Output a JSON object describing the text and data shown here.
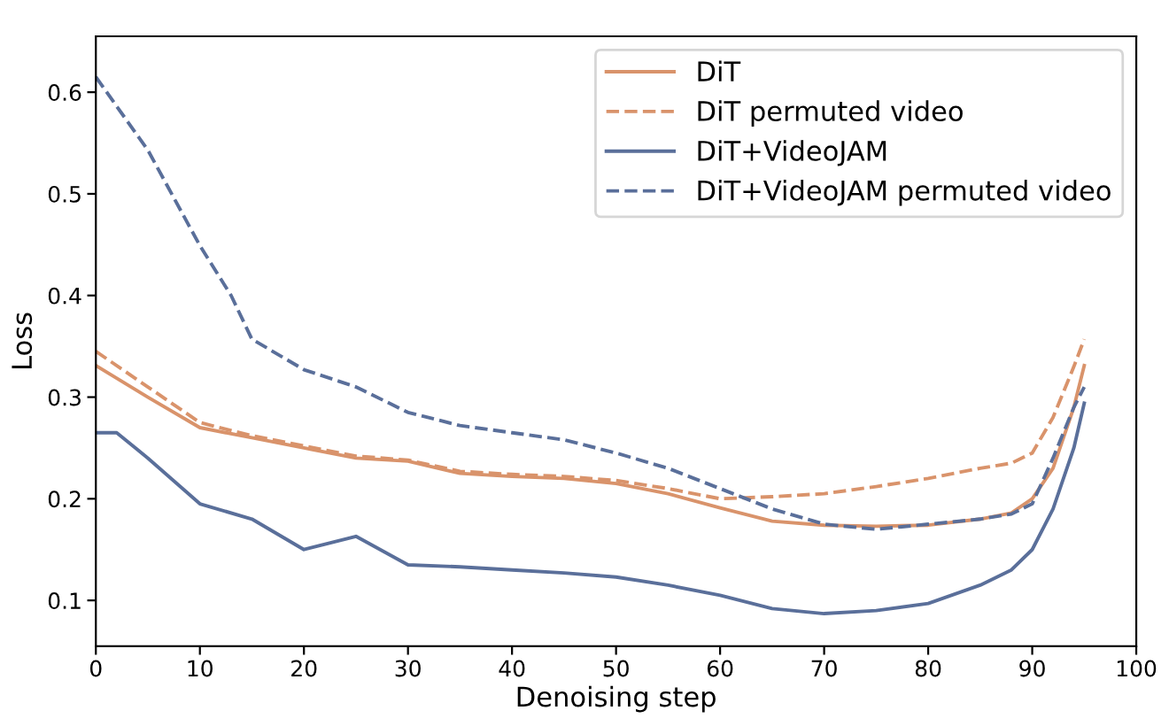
{
  "chart_data": {
    "type": "line",
    "xlabel": "Denoising step",
    "ylabel": "Loss",
    "xlim": [
      0,
      100
    ],
    "xticks": [
      0,
      10,
      20,
      30,
      40,
      50,
      60,
      70,
      80,
      90,
      100
    ],
    "ylim": [
      0.055,
      0.655
    ],
    "yticks": [
      0.1,
      0.2,
      0.3,
      0.4,
      0.5,
      0.6
    ],
    "grid": false,
    "legend": "top right",
    "series": [
      {
        "name": "DiT",
        "color": "#d9936b",
        "line_style": "solid",
        "x": [
          0,
          5,
          10,
          15,
          20,
          25,
          30,
          35,
          40,
          45,
          50,
          55,
          60,
          65,
          70,
          75,
          80,
          85,
          88,
          90,
          92,
          94,
          95
        ],
        "values": [
          0.331,
          0.3,
          0.27,
          0.26,
          0.25,
          0.24,
          0.237,
          0.225,
          0.222,
          0.22,
          0.215,
          0.205,
          0.191,
          0.178,
          0.174,
          0.173,
          0.174,
          0.18,
          0.186,
          0.2,
          0.23,
          0.29,
          0.331
        ]
      },
      {
        "name": "DiT permuted video",
        "color": "#d9936b",
        "line_style": "dashed",
        "x": [
          0,
          5,
          10,
          15,
          20,
          25,
          30,
          35,
          40,
          45,
          50,
          55,
          60,
          65,
          70,
          75,
          80,
          85,
          88,
          90,
          92,
          94,
          95
        ],
        "values": [
          0.345,
          0.31,
          0.275,
          0.262,
          0.252,
          0.242,
          0.238,
          0.227,
          0.224,
          0.222,
          0.218,
          0.21,
          0.2,
          0.202,
          0.205,
          0.212,
          0.22,
          0.23,
          0.235,
          0.245,
          0.28,
          0.33,
          0.357
        ]
      },
      {
        "name": "DiT+VideoJAM",
        "color": "#5a6f9a",
        "line_style": "solid",
        "x": [
          0,
          2,
          5,
          10,
          15,
          20,
          25,
          30,
          35,
          40,
          45,
          50,
          55,
          60,
          65,
          70,
          75,
          80,
          85,
          88,
          90,
          92,
          94,
          95
        ],
        "values": [
          0.265,
          0.265,
          0.24,
          0.195,
          0.18,
          0.15,
          0.163,
          0.135,
          0.133,
          0.13,
          0.127,
          0.123,
          0.115,
          0.105,
          0.092,
          0.087,
          0.09,
          0.097,
          0.115,
          0.13,
          0.15,
          0.19,
          0.25,
          0.294
        ]
      },
      {
        "name": "DiT+VideoJAM permuted video",
        "color": "#5a6f9a",
        "line_style": "dashed",
        "x": [
          0,
          5,
          10,
          13,
          15,
          20,
          25,
          30,
          35,
          40,
          45,
          50,
          55,
          60,
          65,
          70,
          75,
          80,
          85,
          88,
          90,
          92,
          94,
          95
        ],
        "values": [
          0.615,
          0.543,
          0.449,
          0.4,
          0.357,
          0.327,
          0.31,
          0.285,
          0.272,
          0.265,
          0.258,
          0.245,
          0.23,
          0.21,
          0.19,
          0.175,
          0.17,
          0.175,
          0.18,
          0.185,
          0.195,
          0.24,
          0.29,
          0.31
        ]
      }
    ]
  }
}
